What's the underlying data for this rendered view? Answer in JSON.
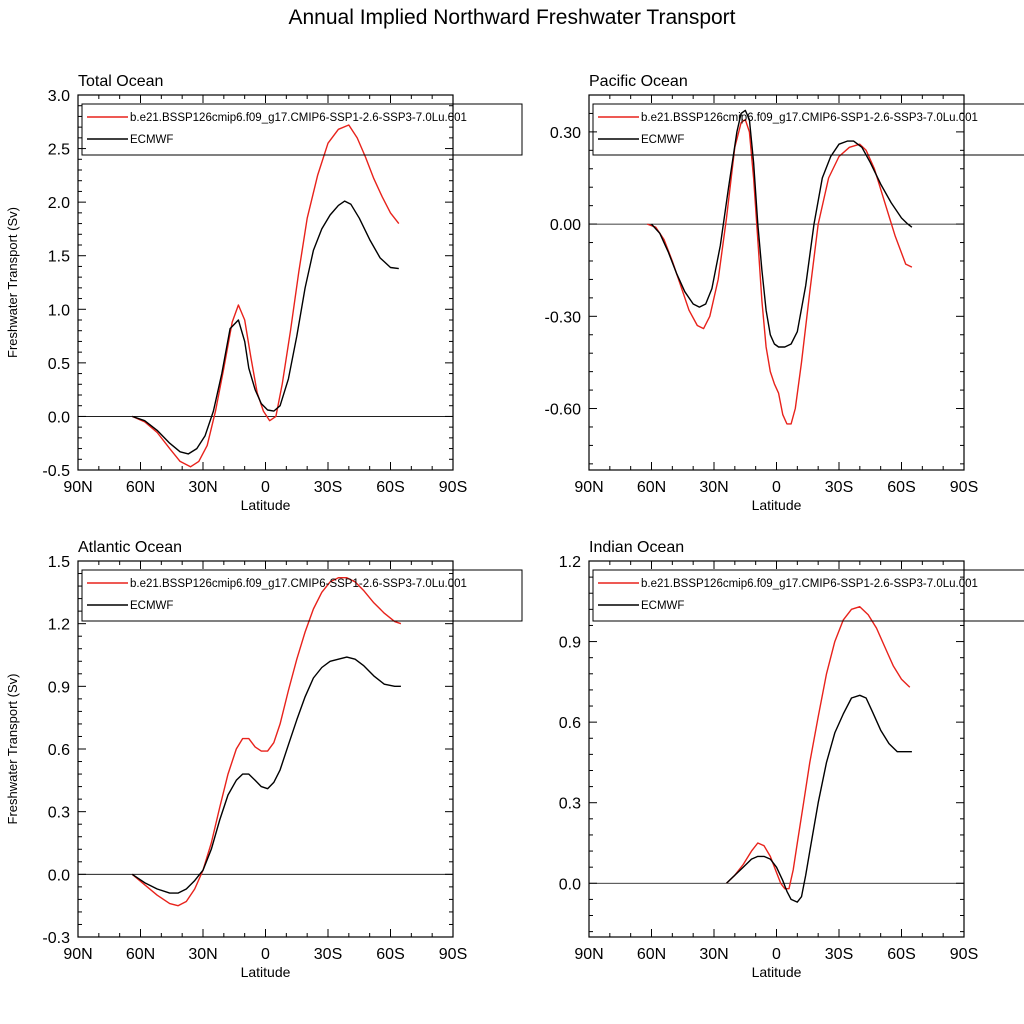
{
  "figure": {
    "title": "Annual Implied Northward Freshwater Transport"
  },
  "colors": {
    "model": "#e8221b",
    "obs": "#000000",
    "frame": "#000000",
    "zero_line": "#000000",
    "legend_border": "#000000"
  },
  "chart_data": [
    {
      "type": "line",
      "title": "Total Ocean",
      "xlabel": "Latitude",
      "ylabel": "Freshwater Transport (Sv)",
      "xlim": [
        -90,
        90
      ],
      "x_ticks": [
        -90,
        -60,
        -30,
        0,
        30,
        60,
        90
      ],
      "x_tick_labels": [
        "90N",
        "60N",
        "30N",
        "0",
        "30S",
        "60S",
        "90S"
      ],
      "ylim": [
        -0.5,
        3.0
      ],
      "y_ticks": [
        -0.5,
        0.0,
        0.5,
        1.0,
        1.5,
        2.0,
        2.5,
        3.0
      ],
      "y_tick_labels": [
        "-0.5",
        "0.0",
        "0.5",
        "1.0",
        "1.5",
        "2.0",
        "2.5",
        "3.0"
      ],
      "zero_line": true,
      "legend_position": "top",
      "series": [
        {
          "name": "b.e21.BSSP126cmip6.f09_g17.CMIP6-SSP1-2.6-SSP3-7.0Lu.001",
          "color": "#e8221b",
          "x": [
            -64,
            -58,
            -52,
            -46,
            -41,
            -36,
            -32,
            -28,
            -24,
            -20,
            -16,
            -13,
            -10,
            -7,
            -4,
            -1,
            2,
            5,
            8,
            12,
            16,
            20,
            25,
            30,
            35,
            40,
            44,
            48,
            52,
            56,
            60,
            64
          ],
          "y": [
            0.0,
            -0.05,
            -0.15,
            -0.3,
            -0.42,
            -0.47,
            -0.42,
            -0.27,
            0.05,
            0.45,
            0.88,
            1.04,
            0.9,
            0.55,
            0.22,
            0.05,
            -0.04,
            0.0,
            0.3,
            0.8,
            1.35,
            1.85,
            2.25,
            2.55,
            2.68,
            2.72,
            2.6,
            2.42,
            2.22,
            2.05,
            1.9,
            1.8
          ]
        },
        {
          "name": "ECMWF",
          "color": "#000000",
          "x": [
            -64,
            -58,
            -52,
            -46,
            -41,
            -37,
            -33,
            -29,
            -25,
            -21,
            -17,
            -13,
            -10,
            -8,
            -5,
            -2,
            1,
            4,
            7,
            11,
            15,
            19,
            23,
            27,
            31,
            35,
            38,
            41,
            45,
            50,
            55,
            60,
            64
          ],
          "y": [
            0.0,
            -0.04,
            -0.13,
            -0.25,
            -0.33,
            -0.35,
            -0.3,
            -0.18,
            0.05,
            0.4,
            0.82,
            0.9,
            0.7,
            0.45,
            0.25,
            0.12,
            0.06,
            0.05,
            0.1,
            0.35,
            0.75,
            1.2,
            1.55,
            1.75,
            1.88,
            1.97,
            2.01,
            1.98,
            1.85,
            1.65,
            1.48,
            1.39,
            1.38
          ]
        }
      ]
    },
    {
      "type": "line",
      "title": "Pacific Ocean",
      "xlabel": "Latitude",
      "ylabel": "",
      "xlim": [
        -90,
        90
      ],
      "x_ticks": [
        -90,
        -60,
        -30,
        0,
        30,
        60,
        90
      ],
      "x_tick_labels": [
        "90N",
        "60N",
        "30N",
        "0",
        "30S",
        "60S",
        "90S"
      ],
      "ylim": [
        -0.8,
        0.42
      ],
      "y_ticks": [
        -0.6,
        -0.3,
        0.0,
        0.3
      ],
      "y_tick_labels": [
        "-0.60",
        "-0.30",
        "0.00",
        "0.30"
      ],
      "zero_line": true,
      "legend_position": "top",
      "series": [
        {
          "name": "b.e21.BSSP126cmip6.f09_g17.CMIP6-SSP1-2.6-SSP3-7.0Lu.001",
          "color": "#e8221b",
          "x": [
            -62,
            -58,
            -54,
            -50,
            -46,
            -42,
            -38,
            -35,
            -32,
            -28,
            -24,
            -20,
            -17,
            -15,
            -13,
            -11,
            -9,
            -7,
            -5,
            -3,
            -1,
            1,
            3,
            5,
            7,
            9,
            12,
            16,
            20,
            25,
            30,
            35,
            40,
            43,
            47,
            52,
            57,
            62,
            65
          ],
          "y": [
            0.0,
            -0.01,
            -0.05,
            -0.12,
            -0.2,
            -0.28,
            -0.33,
            -0.34,
            -0.3,
            -0.18,
            0.02,
            0.25,
            0.33,
            0.34,
            0.3,
            0.15,
            -0.05,
            -0.25,
            -0.4,
            -0.48,
            -0.52,
            -0.55,
            -0.62,
            -0.65,
            -0.65,
            -0.6,
            -0.45,
            -0.22,
            0.0,
            0.15,
            0.22,
            0.25,
            0.26,
            0.24,
            0.18,
            0.07,
            -0.04,
            -0.13,
            -0.14
          ]
        },
        {
          "name": "ECMWF",
          "color": "#000000",
          "x": [
            -60,
            -56,
            -52,
            -48,
            -44,
            -40,
            -37,
            -34,
            -31,
            -27,
            -23,
            -19,
            -17,
            -15,
            -13,
            -11,
            -9,
            -7,
            -5,
            -3,
            -1,
            1,
            4,
            7,
            10,
            14,
            18,
            22,
            26,
            30,
            34,
            37,
            41,
            45,
            50,
            55,
            60,
            63,
            65
          ],
          "y": [
            0.0,
            -0.03,
            -0.09,
            -0.16,
            -0.22,
            -0.26,
            -0.27,
            -0.26,
            -0.21,
            -0.07,
            0.12,
            0.3,
            0.36,
            0.37,
            0.34,
            0.2,
            0.0,
            -0.15,
            -0.28,
            -0.36,
            -0.39,
            -0.4,
            -0.4,
            -0.39,
            -0.35,
            -0.2,
            0.0,
            0.15,
            0.22,
            0.26,
            0.27,
            0.27,
            0.25,
            0.2,
            0.13,
            0.07,
            0.02,
            0.0,
            -0.01
          ]
        }
      ]
    },
    {
      "type": "line",
      "title": "Atlantic Ocean",
      "xlabel": "Latitude",
      "ylabel": "Freshwater Transport (Sv)",
      "xlim": [
        -90,
        90
      ],
      "x_ticks": [
        -90,
        -60,
        -30,
        0,
        30,
        60,
        90
      ],
      "x_tick_labels": [
        "90N",
        "60N",
        "30N",
        "0",
        "30S",
        "60S",
        "90S"
      ],
      "ylim": [
        -0.3,
        1.5
      ],
      "y_ticks": [
        -0.3,
        0.0,
        0.3,
        0.6,
        0.9,
        1.2,
        1.5
      ],
      "y_tick_labels": [
        "-0.3",
        "0.0",
        "0.3",
        "0.6",
        "0.9",
        "1.2",
        "1.5"
      ],
      "zero_line": true,
      "legend_position": "top",
      "series": [
        {
          "name": "b.e21.BSSP126cmip6.f09_g17.CMIP6-SSP1-2.6-SSP3-7.0Lu.001",
          "color": "#e8221b",
          "x": [
            -64,
            -58,
            -52,
            -46,
            -42,
            -38,
            -34,
            -30,
            -26,
            -22,
            -18,
            -14,
            -11,
            -8,
            -5,
            -2,
            1,
            4,
            7,
            11,
            15,
            19,
            23,
            27,
            31,
            35,
            39,
            43,
            47,
            52,
            57,
            62,
            65
          ],
          "y": [
            0.0,
            -0.05,
            -0.1,
            -0.14,
            -0.15,
            -0.13,
            -0.07,
            0.02,
            0.15,
            0.32,
            0.48,
            0.6,
            0.65,
            0.65,
            0.61,
            0.59,
            0.59,
            0.63,
            0.72,
            0.88,
            1.03,
            1.16,
            1.27,
            1.35,
            1.4,
            1.42,
            1.42,
            1.4,
            1.36,
            1.3,
            1.25,
            1.21,
            1.2
          ]
        },
        {
          "name": "ECMWF",
          "color": "#000000",
          "x": [
            -64,
            -58,
            -52,
            -46,
            -42,
            -38,
            -34,
            -30,
            -26,
            -22,
            -18,
            -14,
            -11,
            -8,
            -5,
            -2,
            1,
            4,
            7,
            11,
            15,
            19,
            23,
            27,
            31,
            35,
            39,
            43,
            47,
            52,
            57,
            62,
            65
          ],
          "y": [
            0.0,
            -0.04,
            -0.07,
            -0.09,
            -0.09,
            -0.07,
            -0.03,
            0.02,
            0.12,
            0.26,
            0.38,
            0.45,
            0.48,
            0.48,
            0.45,
            0.42,
            0.41,
            0.44,
            0.5,
            0.62,
            0.74,
            0.85,
            0.94,
            0.99,
            1.02,
            1.03,
            1.04,
            1.03,
            1.0,
            0.95,
            0.91,
            0.9,
            0.9
          ]
        }
      ]
    },
    {
      "type": "line",
      "title": "Indian Ocean",
      "xlabel": "Latitude",
      "ylabel": "",
      "xlim": [
        -90,
        90
      ],
      "x_ticks": [
        -90,
        -60,
        -30,
        0,
        30,
        60,
        90
      ],
      "x_tick_labels": [
        "90N",
        "60N",
        "30N",
        "0",
        "30S",
        "60S",
        "90S"
      ],
      "ylim": [
        -0.2,
        1.2
      ],
      "y_ticks": [
        0.0,
        0.3,
        0.6,
        0.9,
        1.2
      ],
      "y_tick_labels": [
        "0.0",
        "0.3",
        "0.6",
        "0.9",
        "1.2"
      ],
      "zero_line": true,
      "legend_position": "top",
      "series": [
        {
          "name": "b.e21.BSSP126cmip6.f09_g17.CMIP6-SSP1-2.6-SSP3-7.0Lu.001",
          "color": "#e8221b",
          "x": [
            -24,
            -20,
            -16,
            -12,
            -9,
            -6,
            -3,
            0,
            2,
            4,
            6,
            8,
            10,
            13,
            16,
            20,
            24,
            28,
            32,
            36,
            40,
            44,
            48,
            52,
            56,
            60,
            64
          ],
          "y": [
            0.0,
            0.03,
            0.07,
            0.12,
            0.15,
            0.14,
            0.1,
            0.04,
            0.0,
            -0.02,
            -0.02,
            0.05,
            0.15,
            0.3,
            0.45,
            0.62,
            0.78,
            0.9,
            0.98,
            1.02,
            1.03,
            1.0,
            0.95,
            0.88,
            0.81,
            0.76,
            0.73
          ]
        },
        {
          "name": "ECMWF",
          "color": "#000000",
          "x": [
            -24,
            -20,
            -16,
            -12,
            -9,
            -6,
            -3,
            0,
            3,
            5,
            7,
            10,
            12,
            14,
            16,
            20,
            24,
            28,
            32,
            36,
            40,
            43,
            46,
            50,
            54,
            58,
            62,
            65
          ],
          "y": [
            0.0,
            0.03,
            0.06,
            0.09,
            0.1,
            0.1,
            0.09,
            0.06,
            0.01,
            -0.03,
            -0.06,
            -0.07,
            -0.05,
            0.03,
            0.12,
            0.3,
            0.45,
            0.56,
            0.63,
            0.69,
            0.7,
            0.69,
            0.64,
            0.57,
            0.52,
            0.49,
            0.49,
            0.49
          ]
        }
      ]
    }
  ]
}
